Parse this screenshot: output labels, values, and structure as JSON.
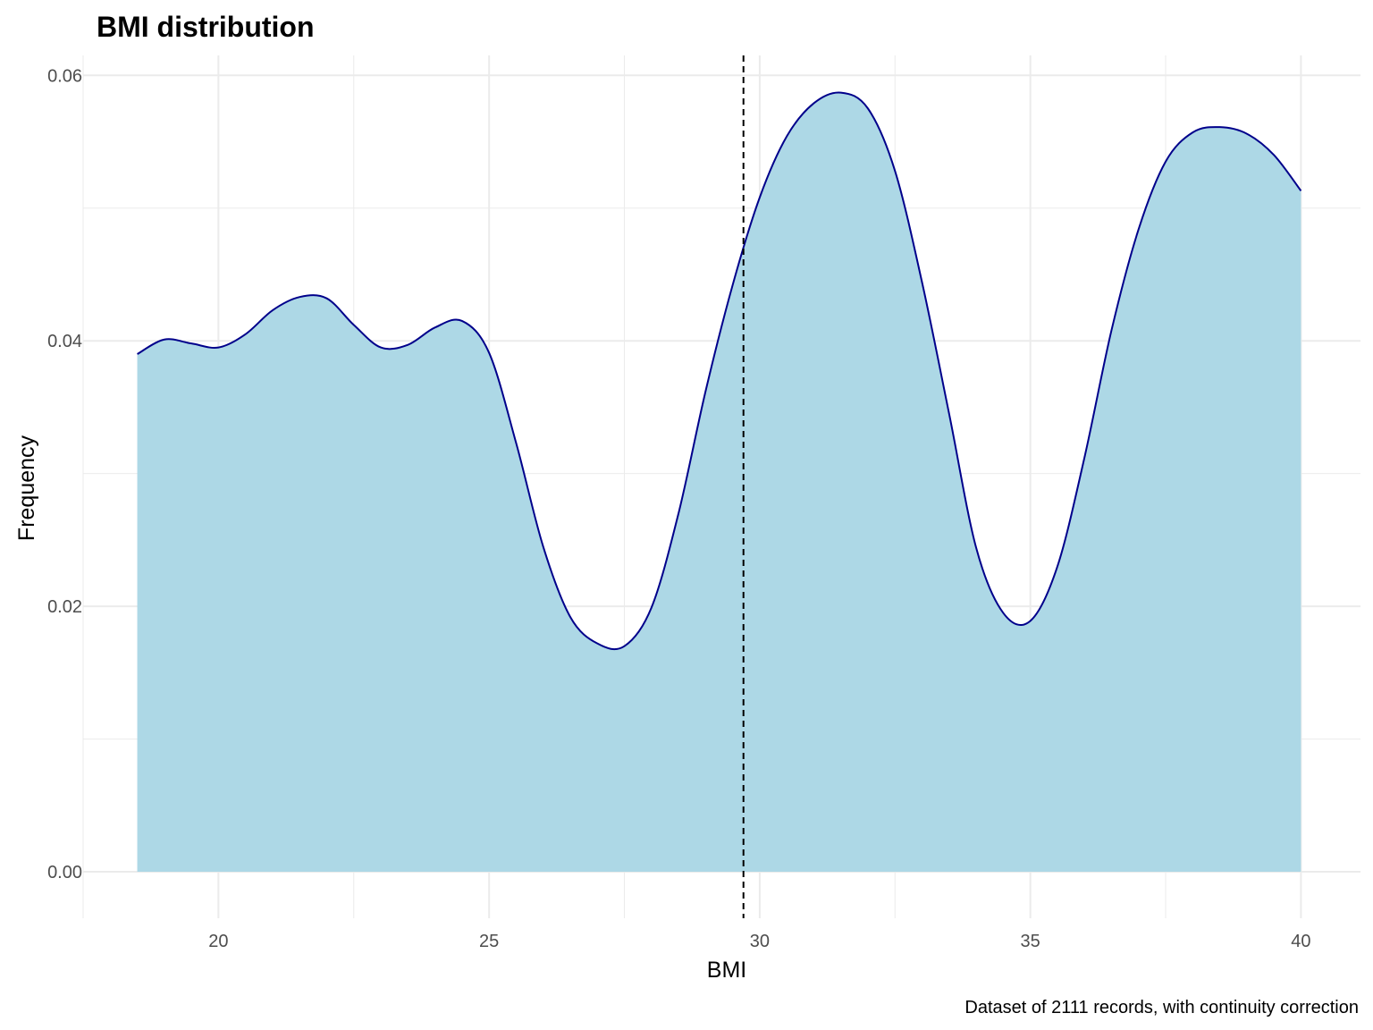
{
  "chart_data": {
    "type": "area",
    "title": "BMI distribution",
    "xlabel": "BMI",
    "ylabel": "Frequency",
    "caption": "Dataset of 2111 records, with continuity correction",
    "xlim": [
      17.5,
      41.1
    ],
    "ylim": [
      -0.0035,
      0.0615
    ],
    "x_ticks": [
      20,
      25,
      30,
      35,
      40
    ],
    "x_tick_labels": [
      "20",
      "25",
      "30",
      "35",
      "40"
    ],
    "y_ticks": [
      0.0,
      0.02,
      0.04,
      0.06
    ],
    "y_tick_labels": [
      "0.00",
      "0.02",
      "0.04",
      "0.06"
    ],
    "grid": true,
    "density": {
      "x": [
        18.5,
        19.0,
        19.5,
        20.0,
        20.5,
        21.0,
        21.5,
        22.0,
        22.5,
        23.0,
        23.5,
        24.0,
        24.5,
        25.0,
        25.5,
        26.0,
        26.5,
        27.0,
        27.5,
        28.0,
        28.5,
        29.0,
        29.5,
        30.0,
        30.5,
        31.0,
        31.5,
        32.0,
        32.5,
        33.0,
        33.5,
        34.0,
        34.5,
        35.0,
        35.5,
        36.0,
        36.5,
        37.0,
        37.5,
        38.0,
        38.5,
        39.0,
        39.5,
        40.0
      ],
      "y": [
        0.039,
        0.0401,
        0.0398,
        0.0395,
        0.0405,
        0.0423,
        0.0433,
        0.0432,
        0.0412,
        0.0395,
        0.0397,
        0.041,
        0.0415,
        0.0391,
        0.0323,
        0.0245,
        0.0192,
        0.0172,
        0.017,
        0.0199,
        0.027,
        0.0362,
        0.0442,
        0.0508,
        0.0554,
        0.0579,
        0.0587,
        0.0575,
        0.0528,
        0.0444,
        0.0345,
        0.0244,
        0.0195,
        0.0189,
        0.023,
        0.0312,
        0.0408,
        0.0484,
        0.0535,
        0.0557,
        0.0561,
        0.0556,
        0.054,
        0.0513
      ]
    },
    "vline_x": 29.7,
    "fill_color": "#add8e6",
    "line_color": "#00008b",
    "vline_color": "#000000",
    "grid_color": "#ebebeb"
  }
}
